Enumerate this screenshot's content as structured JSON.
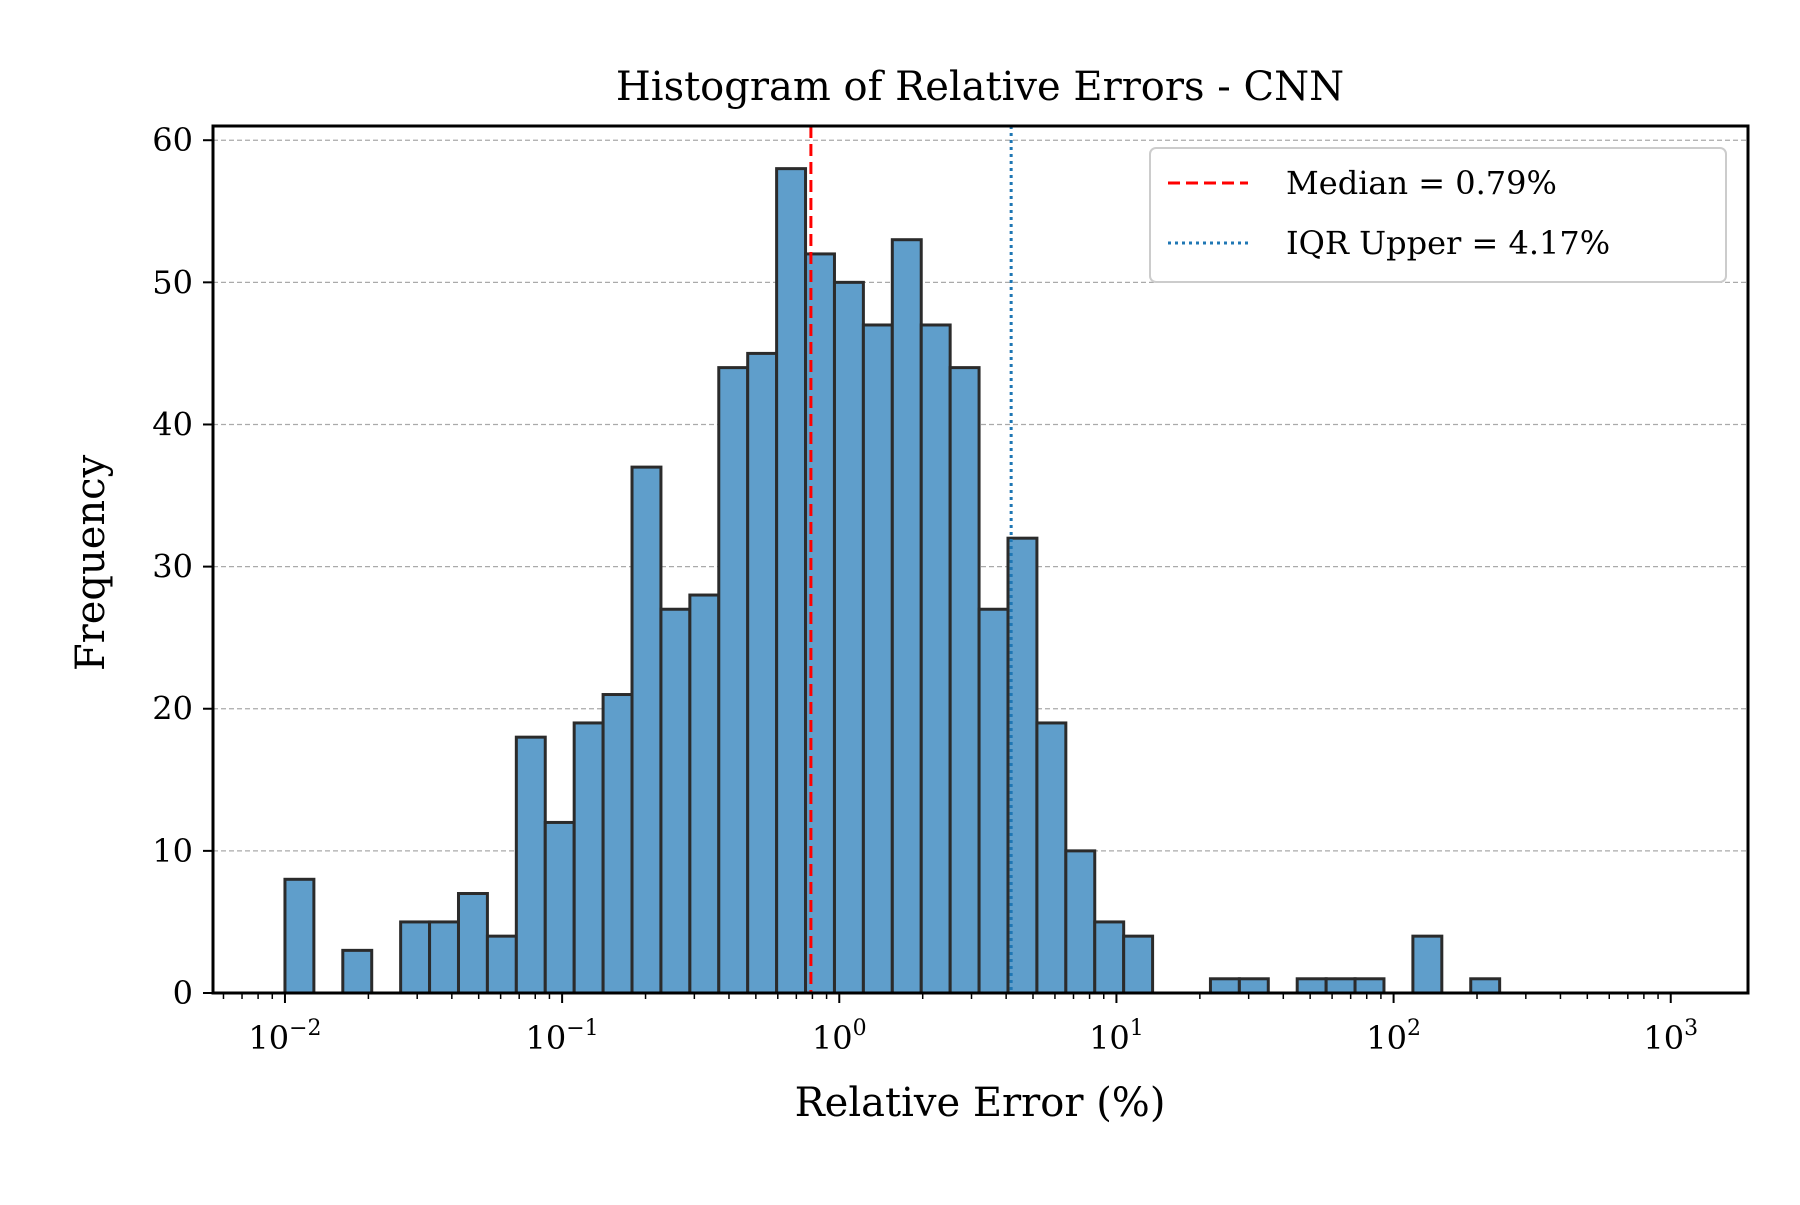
{
  "chart_data": {
    "type": "bar",
    "title": "Histogram of Relative Errors - CNN",
    "xlabel": "Relative Error (%)",
    "ylabel": "Frequency",
    "x_scale": "log",
    "xlim": [
      0.0055,
      1900
    ],
    "ylim": [
      0,
      61
    ],
    "yticks": [
      0,
      10,
      20,
      30,
      40,
      50,
      60
    ],
    "xticks": [
      {
        "base": "10",
        "exp": "−2",
        "value": 0.01
      },
      {
        "base": "10",
        "exp": "−1",
        "value": 0.1
      },
      {
        "base": "10",
        "exp": "0",
        "value": 1
      },
      {
        "base": "10",
        "exp": "1",
        "value": 10
      },
      {
        "base": "10",
        "exp": "2",
        "value": 100
      },
      {
        "base": "10",
        "exp": "3",
        "value": 1000
      }
    ],
    "grid": "y-dashed",
    "bar_color": "#5f9ecb",
    "bar_edge_color": "#2b2b2b",
    "bin_edges_log10_start": -2,
    "bin_width_log10": 0.10435,
    "counts": [
      8,
      0,
      3,
      0,
      5,
      5,
      7,
      4,
      18,
      12,
      19,
      21,
      37,
      27,
      28,
      44,
      45,
      58,
      52,
      50,
      47,
      53,
      47,
      44,
      27,
      32,
      19,
      10,
      5,
      4,
      0,
      0,
      1,
      1,
      0,
      1,
      1,
      1,
      0,
      4,
      0,
      1
    ],
    "reference_lines": [
      {
        "label": "Median = 0.79%",
        "value": 0.79,
        "color": "#ff0000",
        "style": "dashed"
      },
      {
        "label": "IQR Upper = 4.17%",
        "value": 4.17,
        "color": "#1f77b4",
        "style": "dotted"
      }
    ],
    "legend_position": "top-right"
  }
}
